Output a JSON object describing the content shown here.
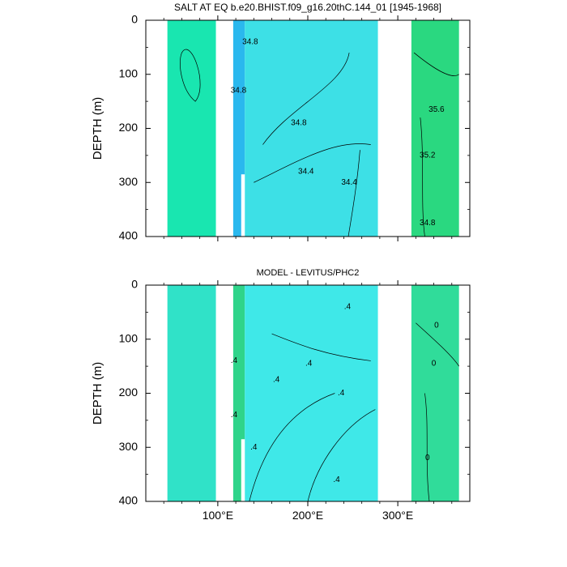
{
  "chart_data": [
    {
      "type": "contour",
      "title": "SALT AT EQ b.e20.BHIST.f09_g16.20thC.144_01 [1945-1968]",
      "ylabel": "DEPTH (m)",
      "xlabel": "",
      "xlim": [
        20,
        380
      ],
      "ylim": [
        400,
        0
      ],
      "y_ticks": [
        0,
        100,
        200,
        300,
        400
      ],
      "x_ticks": [
        {
          "value": 100,
          "label": "100°E"
        },
        {
          "value": 200,
          "label": "200°E"
        },
        {
          "value": 300,
          "label": "300°E"
        }
      ],
      "background_color": "#3ce6d3",
      "ocean_segments": [
        {
          "x": [
            44,
            98
          ],
          "color": "#19e6b0"
        },
        {
          "x": [
            117,
            130
          ],
          "color": "#2ab8ee"
        },
        {
          "x": [
            130,
            278
          ],
          "color": "#3de0e6"
        },
        {
          "x": [
            315,
            368
          ],
          "color": "#2ad880"
        }
      ],
      "land_gaps": [
        {
          "x": [
            98,
            117
          ],
          "depth_from": 0
        },
        {
          "x": [
            126,
            130
          ],
          "depth_from": 285
        },
        {
          "x": [
            278,
            315
          ],
          "depth_from": 0
        }
      ],
      "contour_labels": [
        {
          "text": "34.8",
          "x": 136,
          "y": 40
        },
        {
          "text": "34.8",
          "x": 123,
          "y": 130
        },
        {
          "text": "34.8",
          "x": 190,
          "y": 190
        },
        {
          "text": "34.4",
          "x": 198,
          "y": 280
        },
        {
          "text": "34.4",
          "x": 246,
          "y": 300
        },
        {
          "text": "35.6",
          "x": 343,
          "y": 165
        },
        {
          "text": "35.2",
          "x": 333,
          "y": 250
        },
        {
          "text": "34.8",
          "x": 333,
          "y": 375
        }
      ]
    },
    {
      "type": "contour",
      "title": "MODEL - LEVITUS/PHC2",
      "ylabel": "DEPTH (m)",
      "xlabel": "",
      "xlim": [
        20,
        380
      ],
      "ylim": [
        400,
        0
      ],
      "y_ticks": [
        0,
        100,
        200,
        300,
        400
      ],
      "x_ticks": [
        {
          "value": 100,
          "label": "100°E"
        },
        {
          "value": 200,
          "label": "200°E"
        },
        {
          "value": 300,
          "label": "300°E"
        }
      ],
      "background_color": "#3ce6d3",
      "ocean_segments": [
        {
          "x": [
            44,
            98
          ],
          "color": "#30e2c8"
        },
        {
          "x": [
            117,
            130
          ],
          "color": "#2fd48a"
        },
        {
          "x": [
            130,
            278
          ],
          "color": "#3fe8e8"
        },
        {
          "x": [
            315,
            368
          ],
          "color": "#30dc9a"
        }
      ],
      "land_gaps": [
        {
          "x": [
            98,
            117
          ],
          "depth_from": 0
        },
        {
          "x": [
            126,
            130
          ],
          "depth_from": 285
        },
        {
          "x": [
            278,
            315
          ],
          "depth_from": 0
        }
      ],
      "contour_labels": [
        {
          "text": ".4",
          "x": 118,
          "y": 140
        },
        {
          "text": ".4",
          "x": 165,
          "y": 175
        },
        {
          "text": ".4",
          "x": 201,
          "y": 145
        },
        {
          "text": ".4",
          "x": 244,
          "y": 40
        },
        {
          "text": ".4",
          "x": 237,
          "y": 200
        },
        {
          "text": ".4",
          "x": 118,
          "y": 240
        },
        {
          "text": ".4",
          "x": 140,
          "y": 300
        },
        {
          "text": ".4",
          "x": 232,
          "y": 360
        },
        {
          "text": "0",
          "x": 343,
          "y": 75
        },
        {
          "text": "0",
          "x": 340,
          "y": 145
        },
        {
          "text": "0",
          "x": 333,
          "y": 320
        }
      ]
    }
  ]
}
